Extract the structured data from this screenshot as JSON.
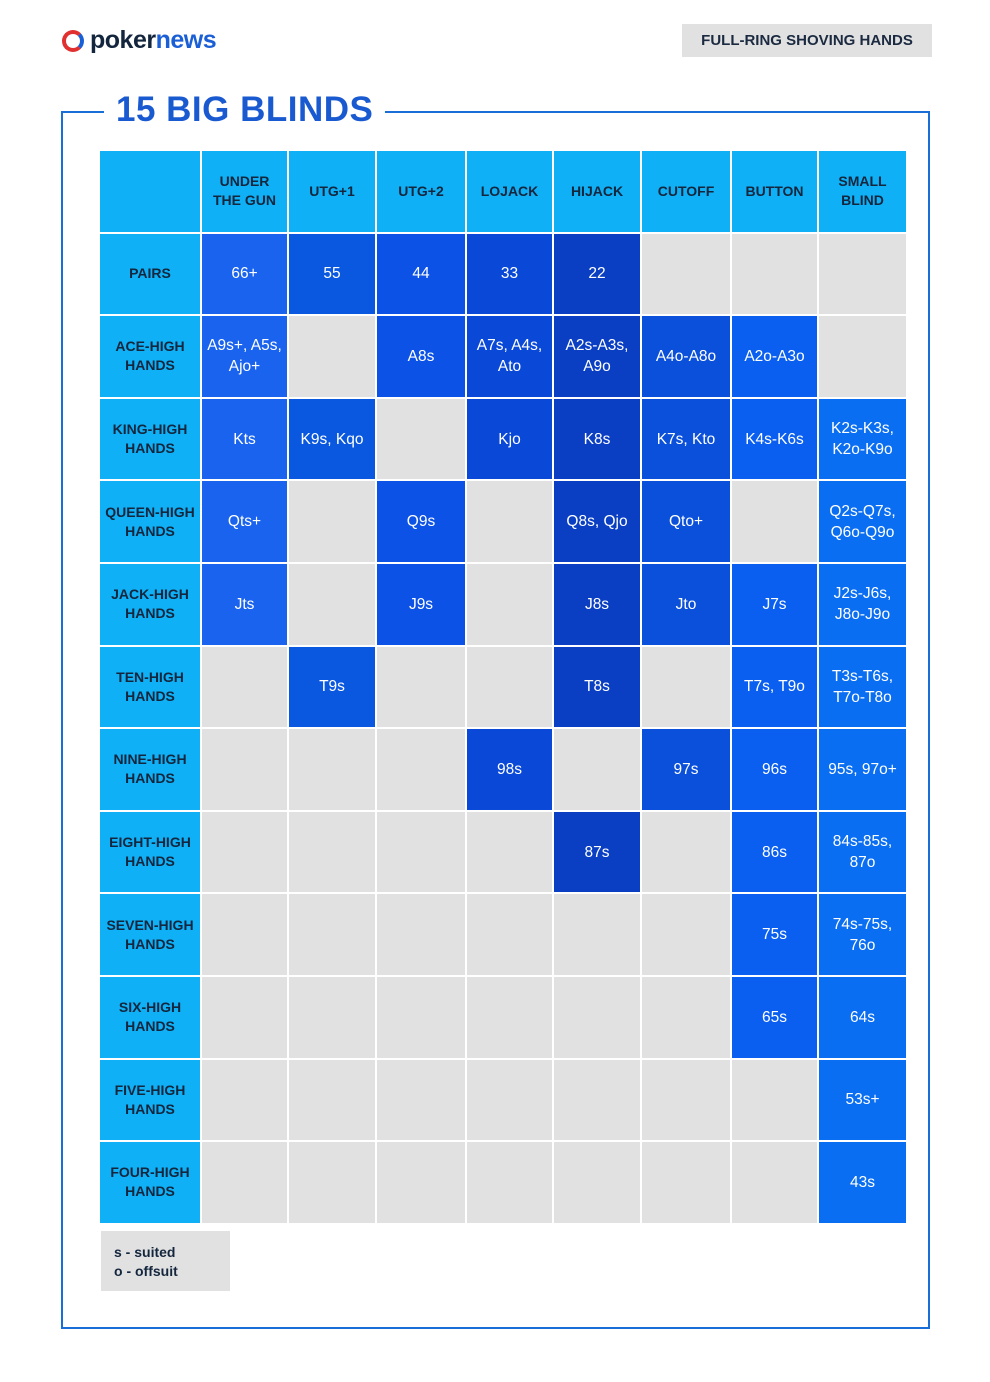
{
  "header": {
    "logo": {
      "poker": "poker",
      "news": "news"
    },
    "badge": "FULL-RING SHOVING HANDS"
  },
  "title": "15 BIG BLINDS",
  "table": {
    "columns": [
      "UNDER THE GUN",
      "UTG+1",
      "UTG+2",
      "LOJACK",
      "HIJACK",
      "CUTOFF",
      "BUTTON",
      "SMALL BLIND"
    ],
    "rows": [
      {
        "label": "PAIRS",
        "cells": [
          "66+",
          "55",
          "44",
          "33",
          "22",
          null,
          null,
          null
        ]
      },
      {
        "label": "ACE-HIGH HANDS",
        "cells": [
          "A9s+, A5s, Ajo+",
          null,
          "A8s",
          "A7s, A4s, Ato",
          "A2s-A3s, A9o",
          "A4o-A8o",
          "A2o-A3o",
          null
        ]
      },
      {
        "label": "KING-HIGH HANDS",
        "cells": [
          "Kts",
          "K9s, Kqo",
          null,
          "Kjo",
          "K8s",
          "K7s, Kto",
          "K4s-K6s",
          "K2s-K3s, K2o-K9o"
        ]
      },
      {
        "label": "QUEEN-HIGH HANDS",
        "cells": [
          "Qts+",
          null,
          "Q9s",
          null,
          "Q8s, Qjo",
          "Qto+",
          null,
          "Q2s-Q7s, Q6o-Q9o"
        ]
      },
      {
        "label": "JACK-HIGH HANDS",
        "cells": [
          "Jts",
          null,
          "J9s",
          null,
          "J8s",
          "Jto",
          "J7s",
          "J2s-J6s, J8o-J9o"
        ]
      },
      {
        "label": "TEN-HIGH HANDS",
        "cells": [
          null,
          "T9s",
          null,
          null,
          "T8s",
          null,
          "T7s, T9o",
          "T3s-T6s, T7o-T8o"
        ]
      },
      {
        "label": "NINE-HIGH HANDS",
        "cells": [
          null,
          null,
          null,
          "98s",
          null,
          "97s",
          "96s",
          "95s, 97o+"
        ]
      },
      {
        "label": "EIGHT-HIGH HANDS",
        "cells": [
          null,
          null,
          null,
          null,
          "87s",
          null,
          "86s",
          "84s-85s, 87o"
        ]
      },
      {
        "label": "SEVEN-HIGH HANDS",
        "cells": [
          null,
          null,
          null,
          null,
          null,
          null,
          "75s",
          "74s-75s, 76o"
        ]
      },
      {
        "label": "SIX-HIGH HANDS",
        "cells": [
          null,
          null,
          null,
          null,
          null,
          null,
          "65s",
          "64s"
        ]
      },
      {
        "label": "FIVE-HIGH HANDS",
        "cells": [
          null,
          null,
          null,
          null,
          null,
          null,
          null,
          "53s+"
        ]
      },
      {
        "label": "FOUR-HIGH HANDS",
        "cells": [
          null,
          null,
          null,
          null,
          null,
          null,
          null,
          "43s"
        ]
      }
    ]
  },
  "legend": [
    "s - suited",
    "o - offsuit"
  ]
}
